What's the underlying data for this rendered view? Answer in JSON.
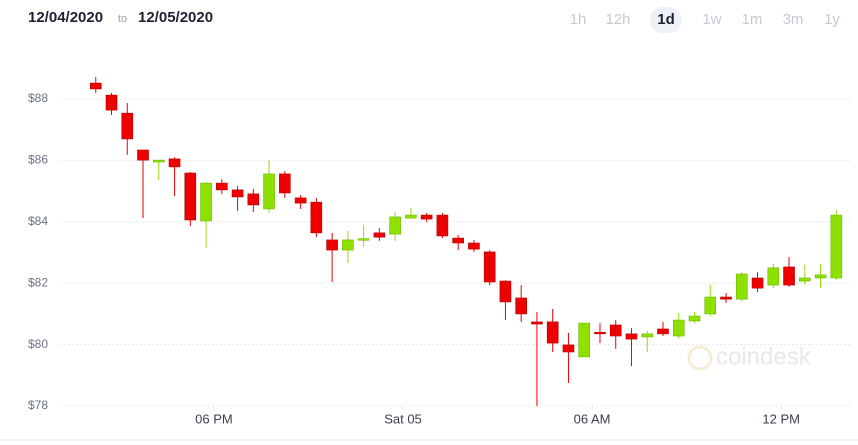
{
  "header": {
    "from": "12/04/2020",
    "joiner": "to",
    "to": "12/05/2020"
  },
  "range_buttons": {
    "options": [
      "1h",
      "12h",
      "1d",
      "1w",
      "1m",
      "3m",
      "1y"
    ],
    "selected": 2
  },
  "watermark": "coindesk",
  "chart_data": {
    "type": "candlestick",
    "x": [
      14.25,
      14.75,
      15.25,
      15.75,
      16.25,
      16.75,
      17.25,
      17.75,
      18.25,
      18.75,
      19.25,
      19.75,
      20.25,
      20.75,
      21.25,
      21.75,
      22.25,
      22.75,
      23.25,
      23.75,
      24.25,
      24.75,
      25.25,
      25.75,
      26.25,
      26.75,
      27.25,
      27.75,
      28.25,
      28.75,
      29.25,
      29.75,
      30.25,
      30.75,
      31.25,
      31.75,
      32.25,
      32.75,
      33.25,
      33.75,
      34.25,
      34.75,
      35.25,
      35.75,
      36.25,
      36.75,
      37.25,
      37.75
    ],
    "open": [
      88.52,
      88.13,
      87.54,
      86.34,
      85.95,
      86.05,
      85.59,
      84.03,
      85.26,
      85.04,
      84.91,
      84.42,
      85.56,
      84.78,
      84.64,
      83.41,
      83.08,
      83.4,
      83.64,
      83.6,
      84.12,
      84.22,
      84.22,
      83.47,
      83.31,
      83.02,
      82.07,
      81.52,
      80.74,
      80.74,
      79.99,
      79.6,
      80.4,
      80.64,
      80.35,
      80.25,
      80.51,
      80.28,
      80.77,
      81.0,
      81.55,
      81.48,
      82.17,
      81.94,
      82.53,
      82.07,
      82.17,
      82.17
    ],
    "high": [
      88.72,
      88.2,
      87.87,
      86.34,
      86.01,
      86.1,
      85.62,
      85.3,
      85.39,
      85.17,
      85.07,
      86.01,
      85.65,
      84.87,
      84.78,
      83.64,
      83.7,
      83.9,
      83.8,
      84.32,
      84.45,
      84.29,
      84.29,
      83.57,
      83.41,
      83.08,
      82.1,
      81.94,
      81.06,
      81.16,
      80.38,
      80.72,
      80.7,
      80.8,
      80.54,
      80.45,
      80.74,
      81.03,
      81.06,
      81.94,
      81.68,
      82.36,
      82.36,
      82.63,
      82.85,
      82.6,
      82.63,
      84.38
    ],
    "low": [
      88.2,
      87.48,
      86.18,
      84.12,
      85.36,
      84.84,
      83.86,
      83.15,
      84.9,
      84.35,
      84.32,
      84.29,
      84.78,
      84.42,
      83.5,
      82.04,
      82.66,
      83.2,
      83.38,
      83.38,
      84.12,
      84.0,
      83.47,
      83.08,
      83.02,
      81.94,
      80.8,
      80.74,
      78.0,
      79.76,
      78.75,
      79.6,
      80.05,
      79.86,
      79.3,
      79.76,
      80.28,
      80.2,
      80.7,
      80.93,
      81.36,
      81.4,
      81.71,
      81.84,
      81.88,
      81.96,
      81.84,
      82.1
    ],
    "close": [
      88.33,
      87.64,
      86.7,
      86.01,
      86.01,
      85.79,
      84.06,
      85.26,
      85.04,
      84.81,
      84.55,
      85.56,
      84.94,
      84.61,
      83.64,
      83.08,
      83.41,
      83.45,
      83.5,
      84.16,
      84.22,
      84.09,
      83.54,
      83.31,
      83.11,
      82.04,
      81.39,
      81.0,
      80.67,
      80.05,
      79.76,
      80.7,
      80.38,
      80.28,
      80.18,
      80.35,
      80.35,
      80.8,
      80.93,
      81.55,
      81.48,
      82.3,
      81.84,
      82.5,
      81.94,
      82.17,
      82.27,
      84.22
    ],
    "up_color": "#8ee000",
    "down_color": "#ee0000",
    "xlim": [
      13.75,
      38.2
    ],
    "xticks": [
      {
        "value": 18,
        "label": "06 PM"
      },
      {
        "value": 24,
        "label": "Sat 05"
      },
      {
        "value": 30,
        "label": "06 AM"
      },
      {
        "value": 36,
        "label": "12 PM"
      }
    ],
    "ylim": [
      78,
      89.5
    ],
    "yticks": [
      {
        "value": 78,
        "label": "$78"
      },
      {
        "value": 80,
        "label": "$80"
      },
      {
        "value": 82,
        "label": "$82"
      },
      {
        "value": 84,
        "label": "$84"
      },
      {
        "value": 86,
        "label": "$86"
      },
      {
        "value": 88,
        "label": "$88"
      }
    ],
    "grid": true
  }
}
